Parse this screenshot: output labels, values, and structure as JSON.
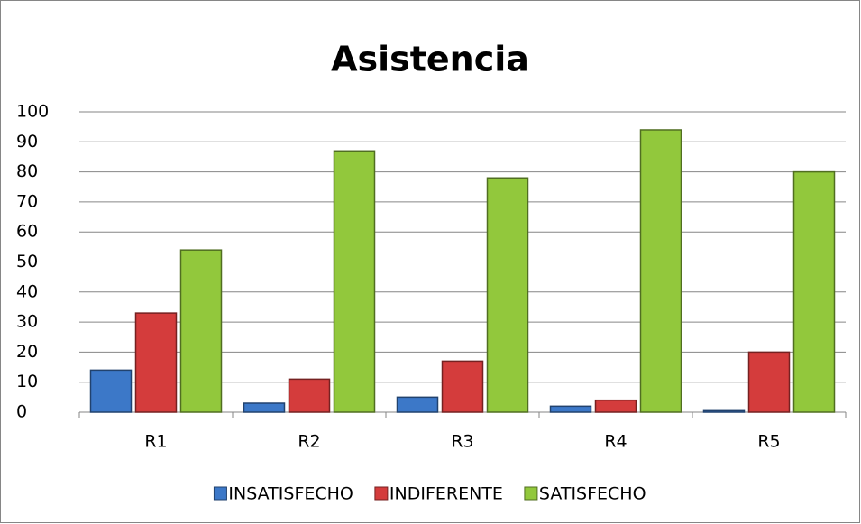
{
  "chart_data": {
    "type": "bar",
    "title": "Asistencia",
    "categories": [
      "R1",
      "R2",
      "R3",
      "R4",
      "R5"
    ],
    "series": [
      {
        "name": "INSATISFECHO",
        "color": "#3c78c8",
        "values": [
          14,
          3,
          5,
          2,
          0.5
        ]
      },
      {
        "name": "INDIFERENTE",
        "color": "#d43c3c",
        "values": [
          33,
          11,
          17,
          4,
          20
        ]
      },
      {
        "name": "SATISFECHO",
        "color": "#92c83c",
        "values": [
          54,
          87,
          78,
          94,
          80
        ]
      }
    ],
    "ylim": [
      0,
      100
    ],
    "yticks": [
      0,
      10,
      20,
      30,
      40,
      50,
      60,
      70,
      80,
      90,
      100
    ],
    "grid": true,
    "legend": "bottom"
  }
}
